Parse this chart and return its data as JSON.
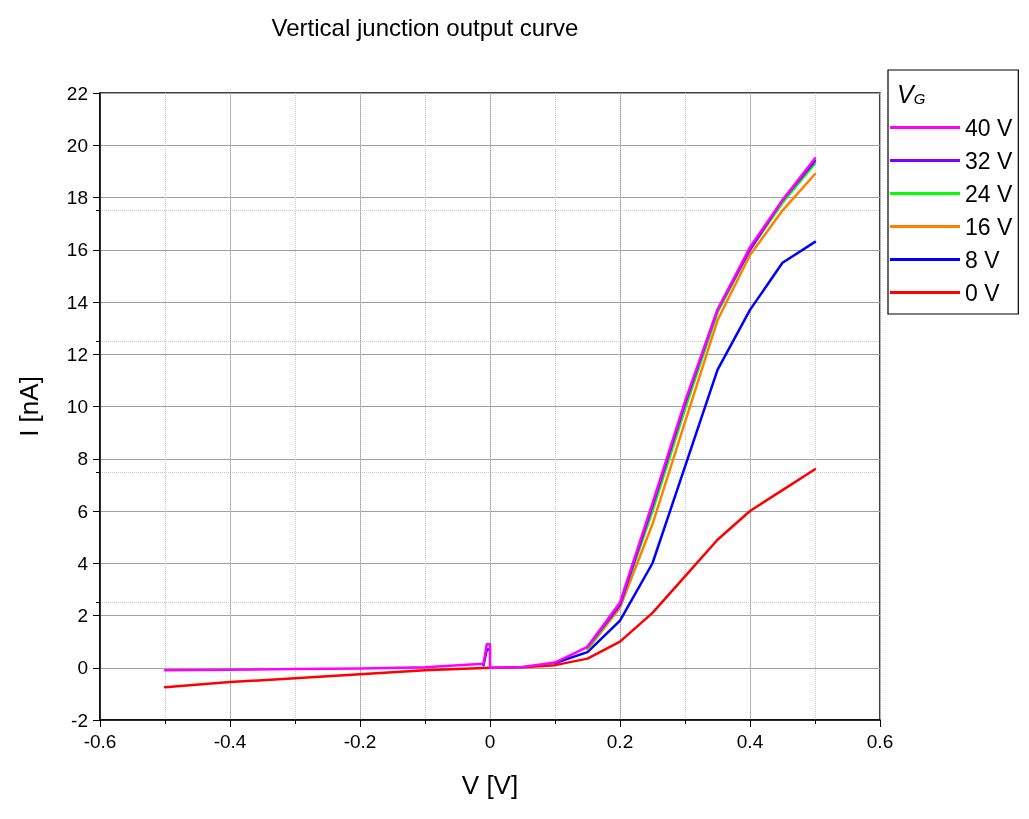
{
  "chart_data": {
    "type": "line",
    "title": "Vertical junction output curve",
    "xlabel": "V [V]",
    "ylabel": "I [nA]",
    "legend_title": "V$_{G}$",
    "xlim": [
      -0.6,
      0.6
    ],
    "xticks": [
      -0.6,
      -0.4,
      -0.2,
      0.0,
      0.2,
      0.4,
      0.6
    ],
    "ylim": [
      -2,
      22
    ],
    "yticks": [
      -2,
      0,
      2,
      4,
      6,
      8,
      10,
      12,
      14,
      16,
      18,
      20,
      22
    ],
    "grid": true,
    "legend": "top right",
    "marker": "none",
    "line_style": "solid",
    "x": [
      -0.5,
      -0.4,
      -0.3,
      -0.2,
      -0.1,
      -0.01,
      -0.005,
      0,
      0,
      0.05,
      0.1,
      0.15,
      0.2,
      0.25,
      0.3,
      0.35,
      0.4,
      0.45,
      0.5
    ],
    "series": [
      {
        "name": "40 V",
        "color": "#ff00ff",
        "values": [
          -0.1,
          -0.08,
          -0.05,
          -0.03,
          0.02,
          0.15,
          0.9,
          0.9,
          0,
          0.03,
          0.2,
          0.8,
          2.5,
          6.3,
          10.2,
          13.7,
          16.1,
          17.9,
          19.5
        ]
      },
      {
        "name": "32 V",
        "color": "#8000ff",
        "values": [
          null,
          null,
          null,
          null,
          null,
          null,
          null,
          null,
          null,
          null,
          null,
          0.8,
          2.4,
          6.2,
          10.1,
          13.7,
          16.0,
          17.9,
          19.4
        ]
      },
      {
        "name": "24 V",
        "color": "#00ff00",
        "values": [
          null,
          null,
          null,
          null,
          null,
          null,
          null,
          null,
          null,
          null,
          null,
          0.75,
          2.4,
          6.0,
          9.9,
          13.6,
          16.0,
          17.8,
          19.3
        ]
      },
      {
        "name": "16 V",
        "color": "#ff8000",
        "values": [
          null,
          null,
          null,
          null,
          null,
          null,
          null,
          null,
          null,
          null,
          null,
          0.7,
          2.3,
          5.5,
          9.4,
          13.3,
          15.8,
          17.5,
          18.9
        ]
      },
      {
        "name": "8 V",
        "color": "#0000ff",
        "values": [
          null,
          null,
          null,
          null,
          null,
          0.1,
          0.7,
          0.7,
          null,
          null,
          0.18,
          0.6,
          1.8,
          4.0,
          7.7,
          11.4,
          13.7,
          15.5,
          16.3
        ]
      },
      {
        "name": "0 V",
        "color": "#ff0000",
        "x": [
          -0.5,
          -0.4,
          -0.3,
          -0.2,
          -0.1,
          0,
          0.05,
          0.1,
          0.15,
          0.2,
          0.25,
          0.3,
          0.35,
          0.4,
          0.45,
          0.5
        ],
        "values": [
          -0.75,
          -0.55,
          -0.4,
          -0.25,
          -0.1,
          0,
          0.02,
          0.1,
          0.35,
          1.0,
          2.1,
          3.5,
          4.9,
          6.0,
          6.8,
          7.6
        ]
      }
    ]
  }
}
